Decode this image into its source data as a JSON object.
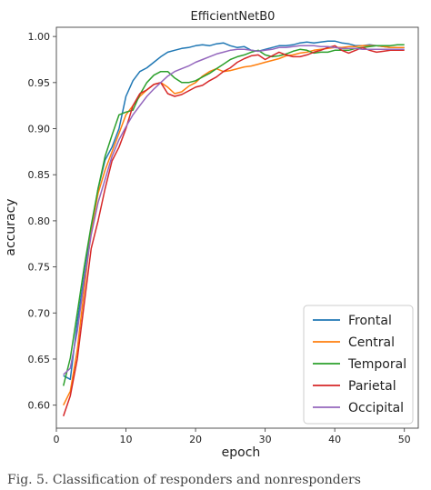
{
  "chart_data": {
    "type": "line",
    "title": "EfficientNetB0",
    "xlabel": "epoch",
    "ylabel": "accuracy",
    "xlim": [
      0,
      52
    ],
    "ylim": [
      0.575,
      1.01
    ],
    "xticks": [
      0,
      10,
      20,
      30,
      40,
      50
    ],
    "yticks": [
      0.6,
      0.65,
      0.7,
      0.75,
      0.8,
      0.85,
      0.9,
      0.95,
      1.0
    ],
    "ytick_labels": [
      "0.60",
      "0.65",
      "0.70",
      "0.75",
      "0.80",
      "0.85",
      "0.90",
      "0.95",
      "1.00"
    ],
    "grid": false,
    "legend_position": "lower-right",
    "x": [
      1,
      2,
      3,
      4,
      5,
      6,
      7,
      8,
      9,
      10,
      11,
      12,
      13,
      14,
      15,
      16,
      17,
      18,
      19,
      20,
      21,
      22,
      23,
      24,
      25,
      26,
      27,
      28,
      29,
      30,
      31,
      32,
      33,
      34,
      35,
      36,
      37,
      38,
      39,
      40,
      41,
      42,
      43,
      44,
      45,
      46,
      47,
      48,
      49,
      50
    ],
    "series": [
      {
        "name": "Frontal",
        "color": "#1f77b4",
        "values": [
          0.632,
          0.628,
          0.69,
          0.74,
          0.79,
          0.835,
          0.866,
          0.88,
          0.9,
          0.935,
          0.952,
          0.962,
          0.966,
          0.972,
          0.978,
          0.983,
          0.985,
          0.987,
          0.988,
          0.99,
          0.991,
          0.99,
          0.992,
          0.993,
          0.99,
          0.988,
          0.989,
          0.985,
          0.984,
          0.986,
          0.988,
          0.99,
          0.99,
          0.991,
          0.993,
          0.994,
          0.993,
          0.994,
          0.995,
          0.995,
          0.993,
          0.992,
          0.99,
          0.99,
          0.991,
          0.99,
          0.989,
          0.988,
          0.988,
          0.988
        ]
      },
      {
        "name": "Central",
        "color": "#ff7f0e",
        "values": [
          0.6,
          0.615,
          0.66,
          0.725,
          0.79,
          0.83,
          0.855,
          0.875,
          0.895,
          0.915,
          0.925,
          0.935,
          0.942,
          0.948,
          0.95,
          0.945,
          0.938,
          0.94,
          0.946,
          0.95,
          0.957,
          0.962,
          0.965,
          0.962,
          0.963,
          0.965,
          0.967,
          0.968,
          0.97,
          0.972,
          0.974,
          0.976,
          0.979,
          0.98,
          0.982,
          0.983,
          0.985,
          0.986,
          0.987,
          0.988,
          0.988,
          0.989,
          0.989,
          0.99,
          0.99,
          0.99,
          0.989,
          0.988,
          0.988,
          0.988
        ]
      },
      {
        "name": "Temporal",
        "color": "#2ca02c",
        "values": [
          0.621,
          0.651,
          0.7,
          0.75,
          0.795,
          0.835,
          0.87,
          0.893,
          0.915,
          0.918,
          0.92,
          0.937,
          0.95,
          0.958,
          0.962,
          0.962,
          0.955,
          0.95,
          0.95,
          0.952,
          0.956,
          0.96,
          0.965,
          0.97,
          0.975,
          0.978,
          0.98,
          0.983,
          0.985,
          0.98,
          0.978,
          0.979,
          0.981,
          0.984,
          0.986,
          0.985,
          0.982,
          0.983,
          0.983,
          0.985,
          0.985,
          0.985,
          0.987,
          0.988,
          0.989,
          0.99,
          0.99,
          0.99,
          0.991,
          0.991
        ]
      },
      {
        "name": "Parietal",
        "color": "#d62728",
        "values": [
          0.588,
          0.61,
          0.65,
          0.71,
          0.77,
          0.8,
          0.835,
          0.865,
          0.88,
          0.9,
          0.925,
          0.938,
          0.942,
          0.948,
          0.95,
          0.938,
          0.935,
          0.937,
          0.941,
          0.945,
          0.947,
          0.952,
          0.956,
          0.962,
          0.966,
          0.972,
          0.976,
          0.979,
          0.98,
          0.975,
          0.979,
          0.983,
          0.98,
          0.978,
          0.978,
          0.98,
          0.983,
          0.985,
          0.988,
          0.99,
          0.985,
          0.982,
          0.985,
          0.988,
          0.985,
          0.983,
          0.984,
          0.985,
          0.985,
          0.985
        ]
      },
      {
        "name": "Occipital",
        "color": "#9467bd",
        "values": [
          0.633,
          0.64,
          0.68,
          0.735,
          0.785,
          0.82,
          0.845,
          0.87,
          0.888,
          0.902,
          0.915,
          0.925,
          0.935,
          0.943,
          0.95,
          0.957,
          0.962,
          0.965,
          0.968,
          0.972,
          0.975,
          0.978,
          0.981,
          0.983,
          0.985,
          0.986,
          0.986,
          0.985,
          0.984,
          0.985,
          0.986,
          0.988,
          0.988,
          0.989,
          0.99,
          0.99,
          0.99,
          0.989,
          0.989,
          0.988,
          0.987,
          0.987,
          0.987,
          0.986,
          0.986,
          0.986,
          0.986,
          0.986,
          0.986,
          0.986
        ]
      }
    ]
  },
  "caption": "Fig. 5.  Classification of responders and nonresponders"
}
